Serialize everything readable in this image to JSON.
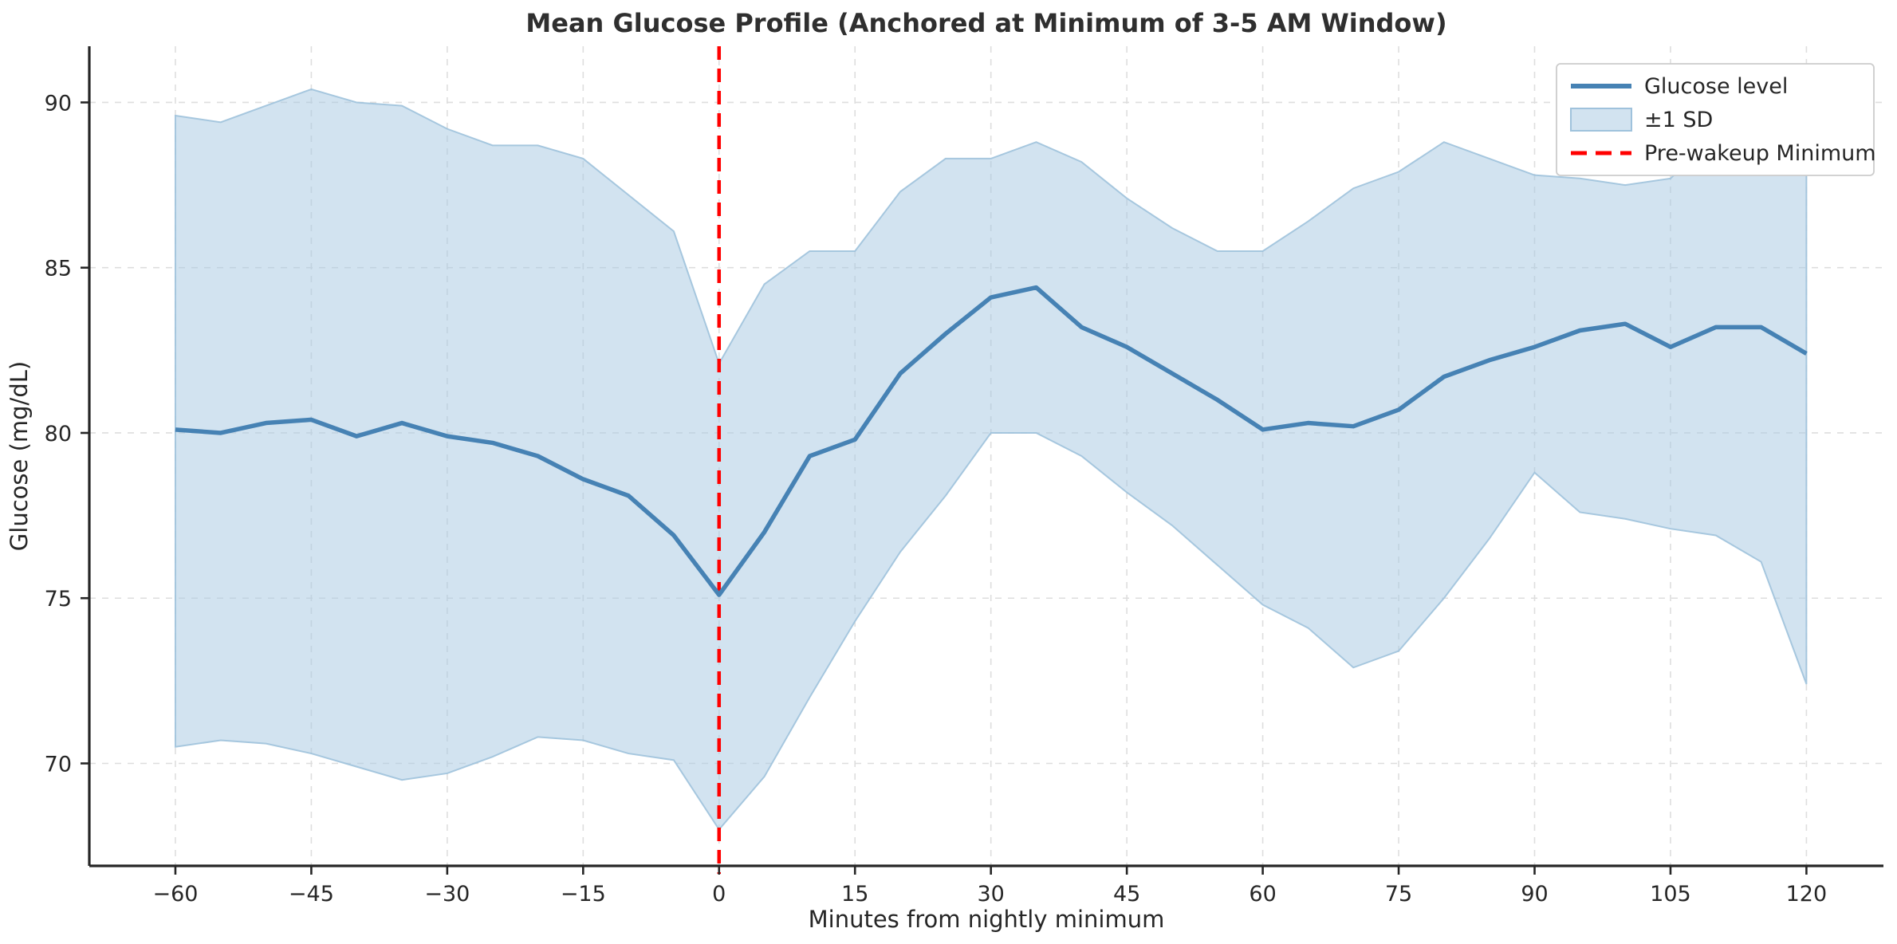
{
  "chart_data": {
    "type": "line",
    "title": "Mean Glucose Profile (Anchored at Minimum of 3-5 AM Window)",
    "xlabel": "Minutes from nightly minimum",
    "ylabel": "Glucose (mg/dL)",
    "x": [
      -60,
      -55,
      -50,
      -45,
      -40,
      -35,
      -30,
      -25,
      -20,
      -15,
      -10,
      -5,
      0,
      5,
      10,
      15,
      20,
      25,
      30,
      35,
      40,
      45,
      50,
      55,
      60,
      65,
      70,
      75,
      80,
      85,
      90,
      95,
      100,
      105,
      110,
      115,
      120
    ],
    "series": [
      {
        "name": "Glucose level",
        "values": [
          80.1,
          80.0,
          80.3,
          80.4,
          79.9,
          80.3,
          79.9,
          79.7,
          79.3,
          78.6,
          78.1,
          76.9,
          75.1,
          77.0,
          79.3,
          79.8,
          81.8,
          83.0,
          84.1,
          84.4,
          83.2,
          82.6,
          81.8,
          81.0,
          80.1,
          80.3,
          80.2,
          80.7,
          81.7,
          82.2,
          82.6,
          83.1,
          83.3,
          82.6,
          83.2,
          83.2,
          82.4
        ]
      },
      {
        "name": "+1 SD (band upper edge)",
        "values": [
          89.6,
          89.4,
          89.9,
          90.4,
          90.0,
          89.9,
          89.2,
          88.7,
          88.7,
          88.3,
          87.2,
          86.1,
          82.1,
          84.5,
          85.5,
          85.5,
          87.3,
          88.3,
          88.3,
          88.8,
          88.2,
          87.1,
          86.2,
          85.5,
          85.5,
          86.4,
          87.4,
          87.9,
          88.8,
          88.3,
          87.8,
          87.7,
          87.5,
          87.7,
          89.0,
          89.1,
          90.1
        ]
      },
      {
        "name": "-1 SD (band lower edge)",
        "values": [
          70.5,
          70.7,
          70.6,
          70.3,
          69.9,
          69.5,
          69.7,
          70.2,
          70.8,
          70.7,
          70.3,
          70.1,
          68.0,
          69.6,
          72.0,
          74.3,
          76.4,
          78.1,
          80.0,
          80.0,
          79.3,
          78.2,
          77.2,
          76.0,
          74.8,
          74.1,
          72.9,
          73.4,
          75.0,
          76.8,
          78.8,
          77.6,
          77.4,
          77.1,
          76.9,
          76.1,
          72.4
        ]
      }
    ],
    "band_label": "±1 SD",
    "vline": {
      "x": 0,
      "label": "Pre-wakeup Minimum"
    },
    "xticks": [
      -60,
      -45,
      -30,
      -15,
      0,
      15,
      30,
      45,
      60,
      75,
      90,
      105,
      120
    ],
    "yticks": [
      70,
      75,
      80,
      85,
      90
    ],
    "xlim": [
      -69.5,
      128.5
    ],
    "ylim": [
      66.9,
      91.7
    ],
    "grid": true,
    "legend_position": "upper right",
    "colors": {
      "line": "#4682B4",
      "band_fill": "#A5C8E1",
      "band_fill_opacity": 0.5,
      "band_edge": "#9FC2DC",
      "vline": "#FF0000",
      "grid": "#DEDEDE",
      "spine": "#262626",
      "tick_text": "#262626",
      "title_text": "#2F2F2F"
    }
  },
  "legend": {
    "items": [
      {
        "label": "Glucose level"
      },
      {
        "label": "±1 SD"
      },
      {
        "label": "Pre-wakeup Minimum"
      }
    ]
  }
}
